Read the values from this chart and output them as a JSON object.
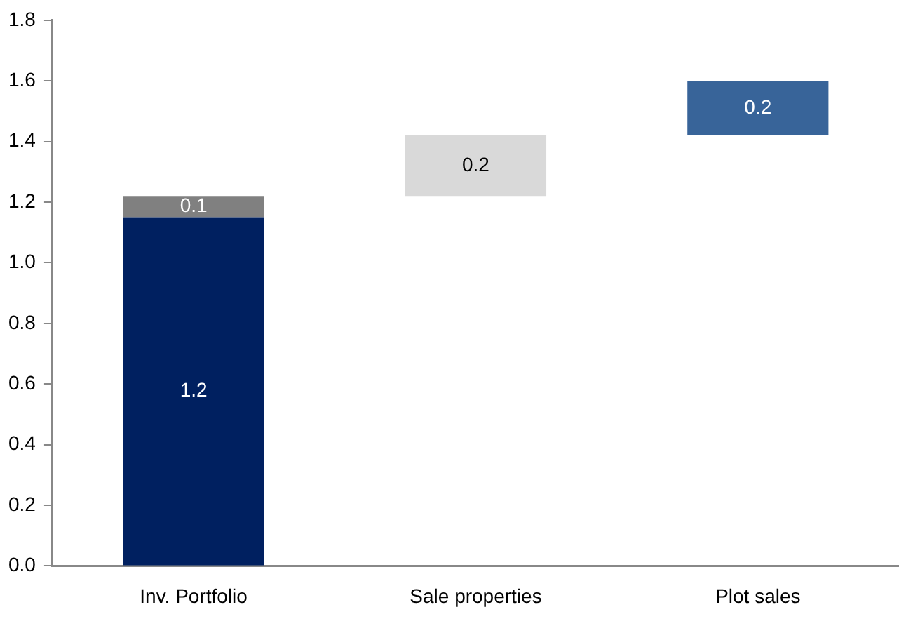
{
  "chart_data": {
    "type": "bar",
    "categories": [
      "Inv. Portfolio",
      "Sale properties",
      "Plot sales"
    ],
    "series": [
      {
        "values": [
          1.15,
          null,
          null
        ],
        "colors": [
          "#002060",
          null,
          null
        ],
        "value_labels": [
          "1.2",
          null,
          null
        ]
      },
      {
        "values": [
          0.07,
          0.2,
          0.18
        ],
        "base": [
          1.15,
          1.22,
          1.42
        ],
        "colors": [
          "#808080",
          "#d9d9d9",
          "#386499"
        ],
        "value_labels": [
          "0.1",
          "0.2",
          "0.2"
        ]
      }
    ],
    "ylim": [
      0,
      1.8
    ],
    "yticks": [
      {
        "value": 0,
        "label": "0.0"
      },
      0.2,
      0.4,
      0.6,
      0.8,
      {
        "value": 1,
        "label": "1.0"
      },
      1.2,
      1.4,
      1.6,
      1.8
    ],
    "grid": false,
    "legend": false
  }
}
